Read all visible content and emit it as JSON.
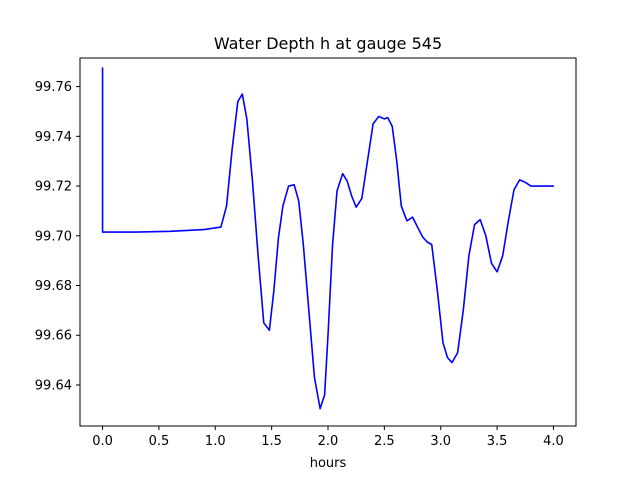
{
  "chart_data": {
    "type": "line",
    "title": "Water Depth h at gauge 545",
    "xlabel": "hours",
    "ylabel": "",
    "xlim": [
      -0.2,
      4.2
    ],
    "ylim": [
      99.6235,
      99.7715
    ],
    "x_ticks": [
      0.0,
      0.5,
      1.0,
      1.5,
      2.0,
      2.5,
      3.0,
      3.5,
      4.0
    ],
    "x_tick_labels": [
      "0.0",
      "0.5",
      "1.0",
      "1.5",
      "2.0",
      "2.5",
      "3.0",
      "3.5",
      "4.0"
    ],
    "y_ticks": [
      99.64,
      99.66,
      99.68,
      99.7,
      99.72,
      99.74,
      99.76
    ],
    "y_tick_labels": [
      "99.64",
      "99.66",
      "99.68",
      "99.70",
      "99.72",
      "99.74",
      "99.76"
    ],
    "grid": false,
    "series": [
      {
        "color": "#0000ff",
        "x": [
          0.0,
          0.0,
          0.01,
          0.3,
          0.6,
          0.9,
          1.05,
          1.1,
          1.15,
          1.2,
          1.24,
          1.28,
          1.33,
          1.38,
          1.43,
          1.48,
          1.52,
          1.56,
          1.6,
          1.65,
          1.7,
          1.74,
          1.78,
          1.83,
          1.88,
          1.93,
          1.97,
          2.0,
          2.04,
          2.08,
          2.13,
          2.17,
          2.21,
          2.25,
          2.3,
          2.35,
          2.4,
          2.45,
          2.5,
          2.53,
          2.57,
          2.61,
          2.65,
          2.7,
          2.75,
          2.8,
          2.84,
          2.88,
          2.92,
          2.97,
          3.02,
          3.06,
          3.1,
          3.15,
          3.2,
          3.25,
          3.3,
          3.35,
          3.4,
          3.45,
          3.5,
          3.55,
          3.6,
          3.65,
          3.7,
          3.75,
          3.8,
          3.85,
          3.9,
          3.95,
          4.0
        ],
        "y": [
          99.7675,
          99.7015,
          99.7015,
          99.7015,
          99.7018,
          99.7025,
          99.7035,
          99.712,
          99.735,
          99.754,
          99.757,
          99.747,
          99.722,
          99.692,
          99.665,
          99.662,
          99.678,
          99.699,
          99.712,
          99.72,
          99.7205,
          99.714,
          99.697,
          99.67,
          99.643,
          99.6305,
          99.636,
          99.66,
          99.696,
          99.718,
          99.725,
          99.722,
          99.716,
          99.7115,
          99.715,
          99.73,
          99.745,
          99.748,
          99.747,
          99.7475,
          99.744,
          99.73,
          99.712,
          99.706,
          99.7075,
          99.703,
          99.6995,
          99.6975,
          99.6965,
          99.678,
          99.657,
          99.651,
          99.649,
          99.653,
          99.67,
          99.692,
          99.7045,
          99.7065,
          99.7,
          99.689,
          99.6855,
          99.692,
          99.706,
          99.7185,
          99.7225,
          99.7215,
          99.72,
          99.72,
          99.72,
          99.72,
          99.72
        ]
      }
    ]
  }
}
